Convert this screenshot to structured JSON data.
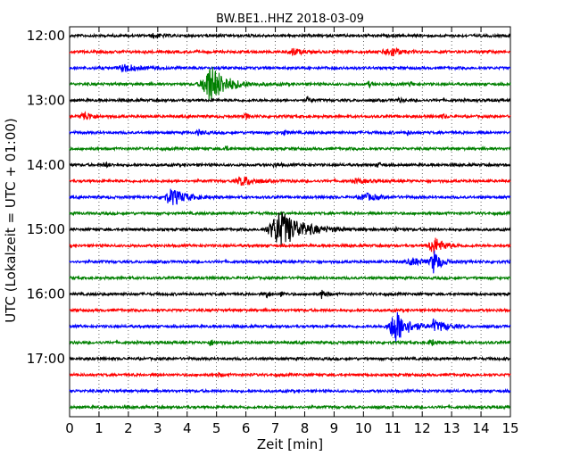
{
  "chart_data": {
    "type": "line",
    "title": "BW.BE1..HHZ 2018-03-09",
    "xlabel": "Zeit  [min]",
    "ylabel": "UTC (Lokalzeit = UTC + 01:00)",
    "xlim": [
      0,
      15
    ],
    "x_ticks": [
      0,
      1,
      2,
      3,
      4,
      5,
      6,
      7,
      8,
      9,
      10,
      11,
      12,
      13,
      14,
      15
    ],
    "y_tick_labels": [
      "12:00",
      "13:00",
      "14:00",
      "15:00",
      "16:00",
      "17:00"
    ],
    "grid": "vertical dotted",
    "series_colors": [
      "#000000",
      "#ff0000",
      "#0000ff",
      "#008000"
    ],
    "traces": [
      {
        "start": "12:00",
        "events": [
          [
            2.9,
            0.3,
            0.2
          ]
        ]
      },
      {
        "start": "12:15",
        "events": [
          [
            7.6,
            0.45,
            0.25
          ],
          [
            10.8,
            0.3,
            0.3
          ],
          [
            11.0,
            0.35,
            0.25
          ],
          [
            14.2,
            0.2,
            0.1
          ]
        ]
      },
      {
        "start": "12:30",
        "events": [
          [
            1.9,
            0.45,
            0.4
          ]
        ]
      },
      {
        "start": "12:45",
        "events": [
          [
            4.8,
            2.4,
            0.5
          ],
          [
            10.2,
            0.3,
            0.1
          ],
          [
            11.6,
            0.3,
            0.1
          ]
        ]
      },
      {
        "start": "13:00",
        "events": [
          [
            8.1,
            0.35,
            0.1
          ],
          [
            11.2,
            0.25,
            0.1
          ]
        ]
      },
      {
        "start": "13:15",
        "events": [
          [
            0.5,
            0.55,
            0.25
          ],
          [
            6.0,
            0.3,
            0.15
          ],
          [
            12.7,
            0.25,
            0.1
          ]
        ]
      },
      {
        "start": "13:30",
        "events": [
          [
            4.4,
            0.3,
            0.15
          ],
          [
            7.3,
            0.25,
            0.15
          ],
          [
            11.5,
            0.25,
            0.1
          ]
        ]
      },
      {
        "start": "13:45",
        "events": [
          [
            5.3,
            0.25,
            0.15
          ]
        ]
      },
      {
        "start": "14:00",
        "events": [
          [
            1.2,
            0.25,
            0.15
          ],
          [
            7.0,
            0.2,
            0.15
          ],
          [
            10.5,
            0.3,
            0.1
          ]
        ]
      },
      {
        "start": "14:15",
        "events": [
          [
            5.9,
            0.55,
            0.4
          ],
          [
            9.8,
            0.25,
            0.3
          ]
        ]
      },
      {
        "start": "14:30",
        "events": [
          [
            3.5,
            1.0,
            0.45
          ],
          [
            10.1,
            0.4,
            0.4
          ]
        ]
      },
      {
        "start": "14:45",
        "events": []
      },
      {
        "start": "15:00",
        "events": [
          [
            7.2,
            2.2,
            0.7
          ],
          [
            11.1,
            0.3,
            0.1
          ]
        ]
      },
      {
        "start": "15:15",
        "events": [
          [
            12.4,
            1.1,
            0.3
          ]
        ]
      },
      {
        "start": "15:30",
        "events": [
          [
            11.7,
            0.4,
            0.4
          ],
          [
            12.4,
            1.4,
            0.2
          ]
        ]
      },
      {
        "start": "15:45",
        "events": []
      },
      {
        "start": "16:00",
        "events": [
          [
            6.7,
            0.35,
            0.1
          ],
          [
            7.2,
            0.3,
            0.1
          ],
          [
            8.6,
            0.6,
            0.1
          ]
        ]
      },
      {
        "start": "16:15",
        "events": []
      },
      {
        "start": "16:30",
        "events": [
          [
            11.1,
            2.0,
            0.4
          ],
          [
            12.4,
            0.9,
            0.1
          ],
          [
            12.7,
            0.4,
            0.3
          ]
        ]
      },
      {
        "start": "16:45",
        "events": [
          [
            4.8,
            0.35,
            0.15
          ],
          [
            12.3,
            0.4,
            0.15
          ]
        ]
      },
      {
        "start": "17:00",
        "events": []
      },
      {
        "start": "17:15",
        "events": [
          [
            5.1,
            0.2,
            0.1
          ]
        ]
      },
      {
        "start": "17:30",
        "events": []
      },
      {
        "start": "17:45",
        "events": []
      }
    ]
  }
}
